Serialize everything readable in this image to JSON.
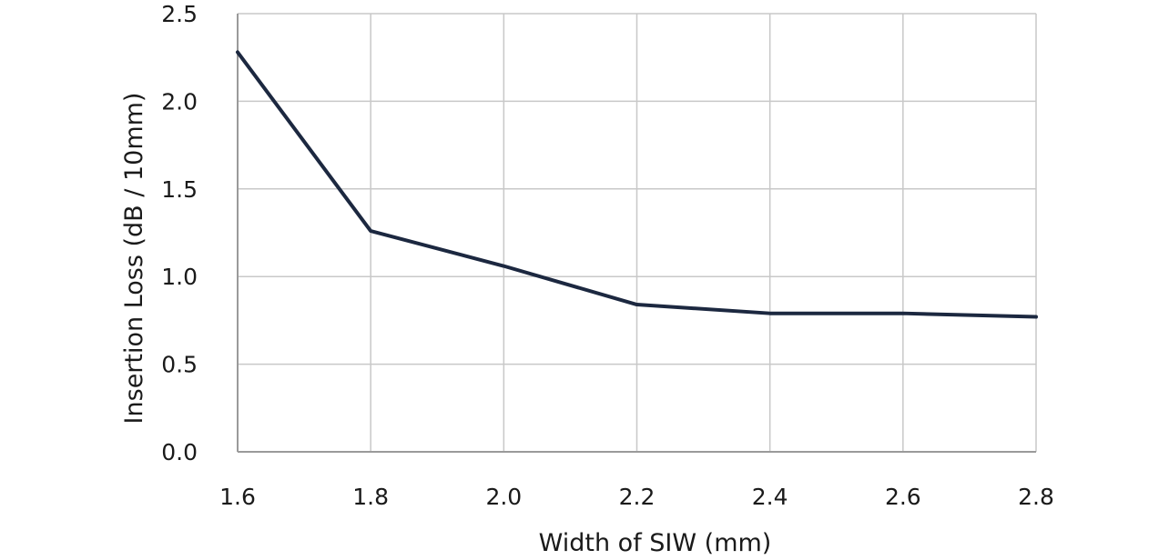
{
  "chart_data": {
    "type": "line",
    "title": "",
    "xlabel": "Width of SIW (mm)",
    "ylabel": "Insertion Loss  (dB / 10mm)",
    "x": [
      1.6,
      1.8,
      2.0,
      2.2,
      2.4,
      2.6,
      2.8
    ],
    "x_tick_labels": [
      "1.6",
      "1.8",
      "2.0",
      "2.2",
      "2.4",
      "2.6",
      "2.8"
    ],
    "y_tick_labels": [
      "0.0",
      "0.5",
      "1.0",
      "1.5",
      "2.0",
      "2.5"
    ],
    "y_ticks": [
      0.0,
      0.5,
      1.0,
      1.5,
      2.0,
      2.5
    ],
    "xlim": [
      1.6,
      2.8
    ],
    "ylim": [
      0.0,
      2.5
    ],
    "grid": true,
    "series": [
      {
        "values": [
          2.28,
          1.26,
          1.06,
          0.84,
          0.79,
          0.79,
          0.77
        ],
        "color": "#1c2840"
      }
    ]
  }
}
